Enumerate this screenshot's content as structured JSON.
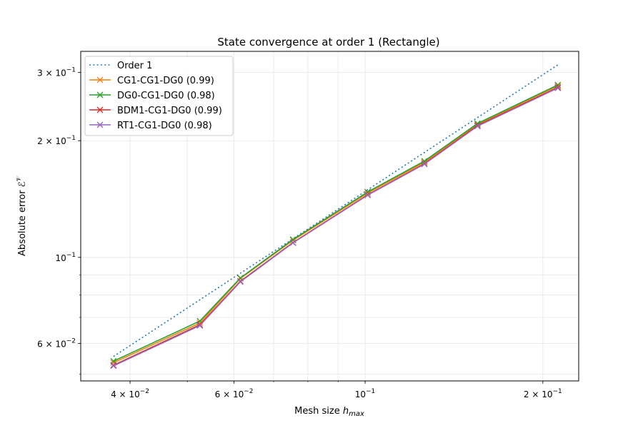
{
  "chart_data": {
    "type": "line",
    "title": "State convergence at order 1 (Rectangle)",
    "xlabel_main": "Mesh size ",
    "xlabel_var": "h",
    "xlabel_sub": "max",
    "ylabel_main": "Absolute error ",
    "ylabel_sym": "ℰ",
    "ylabel_sup": "𝒱",
    "xscale": "log",
    "yscale": "log",
    "xlim": [
      0.033,
      0.23
    ],
    "ylim": [
      0.048,
      0.34
    ],
    "grid": true,
    "legend_position": "top-left",
    "x": [
      0.0375,
      0.0525,
      0.0615,
      0.0755,
      0.101,
      0.126,
      0.155,
      0.212
    ],
    "xticks": [
      {
        "value": 0.04,
        "mant": "4",
        "exp": "−2"
      },
      {
        "value": 0.06,
        "mant": "6",
        "exp": "−2"
      },
      {
        "value": 0.1,
        "mant": "10",
        "exp": "−1",
        "plain": true
      },
      {
        "value": 0.2,
        "mant": "2",
        "exp": "−1"
      }
    ],
    "yticks": [
      {
        "value": 0.06,
        "mant": "6",
        "exp": "−2"
      },
      {
        "value": 0.1,
        "mant": "10",
        "exp": "−1",
        "plain": true
      },
      {
        "value": 0.2,
        "mant": "2",
        "exp": "−1"
      },
      {
        "value": 0.3,
        "mant": "3",
        "exp": "−1"
      }
    ],
    "series": [
      {
        "name": "Order 1",
        "color": "#1f77b4",
        "style": "dotted",
        "marker": "none",
        "values": [
          0.0555,
          0.0777,
          0.091,
          0.1117,
          0.1494,
          0.1865,
          0.2294,
          0.3137
        ]
      },
      {
        "name": "CG1-CG1-DG0 (0.99)",
        "color": "#ff7f0e",
        "style": "solid",
        "marker": "x",
        "values": [
          0.0535,
          0.0677,
          0.0882,
          0.1107,
          0.1465,
          0.176,
          0.2203,
          0.277
        ]
      },
      {
        "name": "DG0-CG1-DG0 (0.98)",
        "color": "#2ca02c",
        "style": "solid",
        "marker": "x",
        "values": [
          0.054,
          0.0685,
          0.0885,
          0.1112,
          0.1475,
          0.1772,
          0.2215,
          0.2785
        ]
      },
      {
        "name": "BDM1-CG1-DG0 (0.99)",
        "color": "#d62728",
        "style": "solid",
        "marker": "x",
        "values": [
          0.0527,
          0.067,
          0.0868,
          0.1092,
          0.145,
          0.1745,
          0.2188,
          0.2745
        ]
      },
      {
        "name": "RT1-CG1-DG0 (0.98)",
        "color": "#9467bd",
        "style": "solid",
        "marker": "x",
        "values": [
          0.0525,
          0.0667,
          0.0865,
          0.109,
          0.1447,
          0.174,
          0.218,
          0.2735
        ]
      }
    ]
  }
}
